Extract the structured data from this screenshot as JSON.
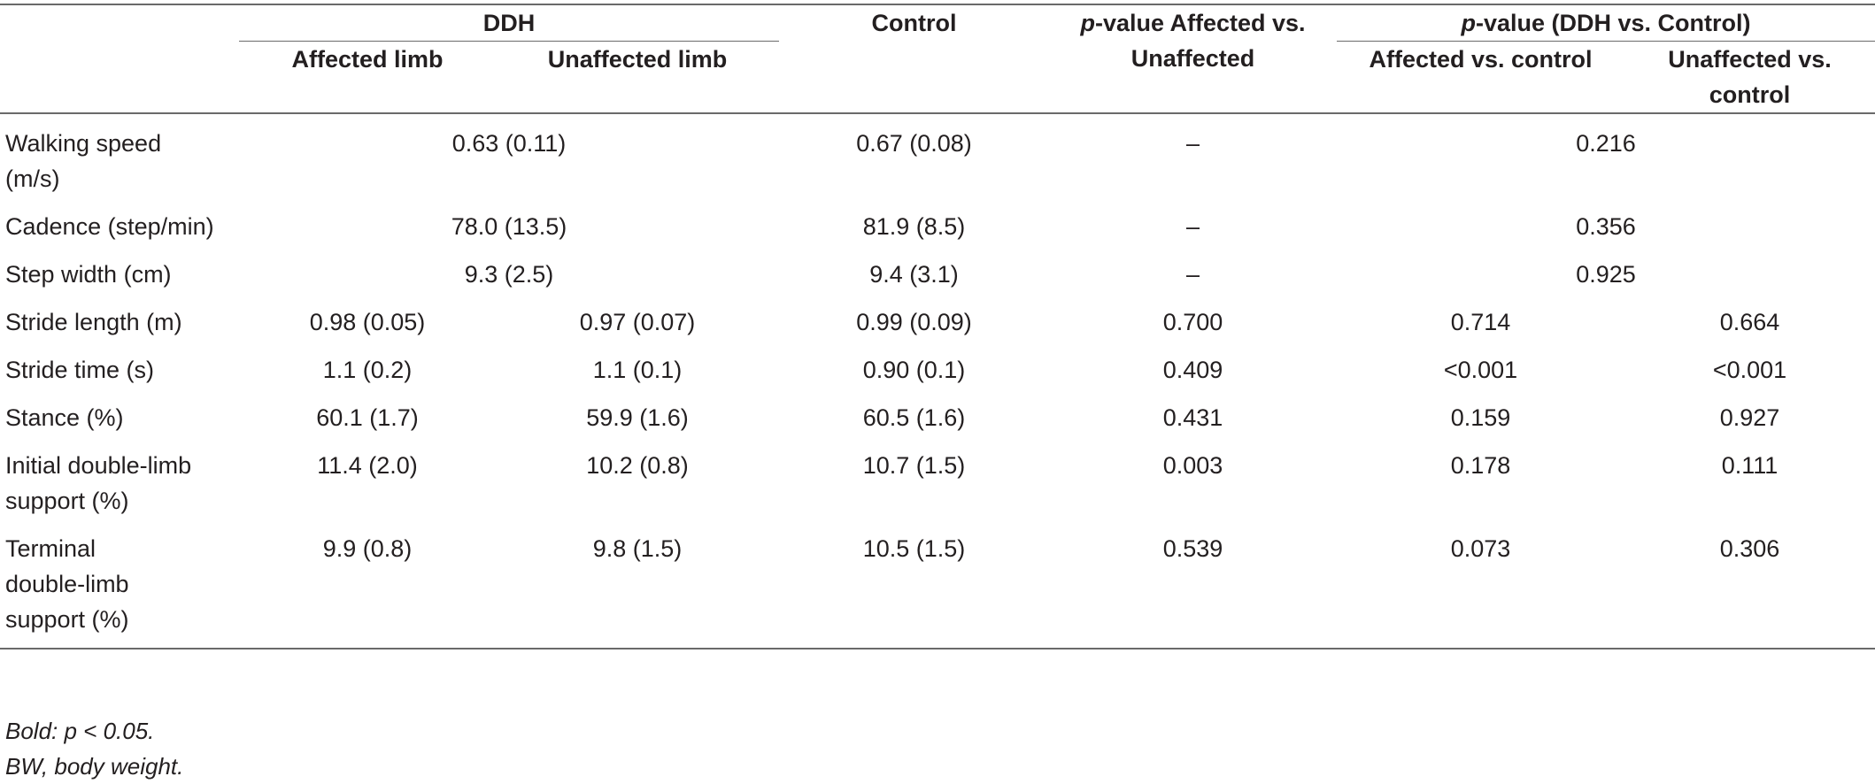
{
  "header": {
    "ddh": "DDH",
    "control": "Control",
    "p_affected_italic": "p",
    "p_affected_rest": "-value Affected vs. Unaffected",
    "p_ddh_italic": "p",
    "p_ddh_rest": "-value (DDH vs. Control)",
    "affected_limb": "Affected limb",
    "unaffected_limb": "Unaffected limb",
    "affected_vs_control": "Affected vs. control",
    "unaffected_vs_control": "Unaffected vs. control"
  },
  "rows": [
    {
      "label": "Walking speed (m/s)",
      "ddh": "0.63 (0.11)",
      "control": "0.67 (0.08)",
      "p_aff_unaff": "–",
      "p_ddh_control": "0.216"
    },
    {
      "label": "Cadence (step/min)",
      "ddh": "78.0 (13.5)",
      "control": "81.9 (8.5)",
      "p_aff_unaff": "–",
      "p_ddh_control": "0.356"
    },
    {
      "label": "Step width (cm)",
      "ddh": "9.3 (2.5)",
      "control": "9.4 (3.1)",
      "p_aff_unaff": "–",
      "p_ddh_control": "0.925"
    },
    {
      "label": "Stride length (m)",
      "affected": "0.98 (0.05)",
      "unaffected": "0.97 (0.07)",
      "control": "0.99 (0.09)",
      "p_aff_unaff": "0.700",
      "p_aff_control": "0.714",
      "p_unaff_control": "0.664"
    },
    {
      "label": "Stride time (s)",
      "affected": "1.1 (0.2)",
      "unaffected": "1.1 (0.1)",
      "control": "0.90 (0.1)",
      "p_aff_unaff": "0.409",
      "p_aff_control": "<0.001",
      "p_unaff_control": "<0.001"
    },
    {
      "label": "Stance (%)",
      "affected": "60.1 (1.7)",
      "unaffected": "59.9 (1.6)",
      "control": "60.5 (1.6)",
      "p_aff_unaff": "0.431",
      "p_aff_control": "0.159",
      "p_unaff_control": "0.927"
    },
    {
      "label": "Initial double-limb support (%)",
      "affected": "11.4 (2.0)",
      "unaffected": "10.2 (0.8)",
      "control": "10.7 (1.5)",
      "p_aff_unaff": "0.003",
      "p_aff_control": "0.178",
      "p_unaff_control": "0.111"
    },
    {
      "label": "Terminal double-limb support (%)",
      "affected": "9.9 (0.8)",
      "unaffected": "9.8 (1.5)",
      "control": "10.5 (1.5)",
      "p_aff_unaff": "0.539",
      "p_aff_control": "0.073",
      "p_unaff_control": "0.306"
    }
  ],
  "notes": {
    "bold_note": "Bold: p < 0.05.",
    "abbrev_note": "BW, body weight."
  }
}
